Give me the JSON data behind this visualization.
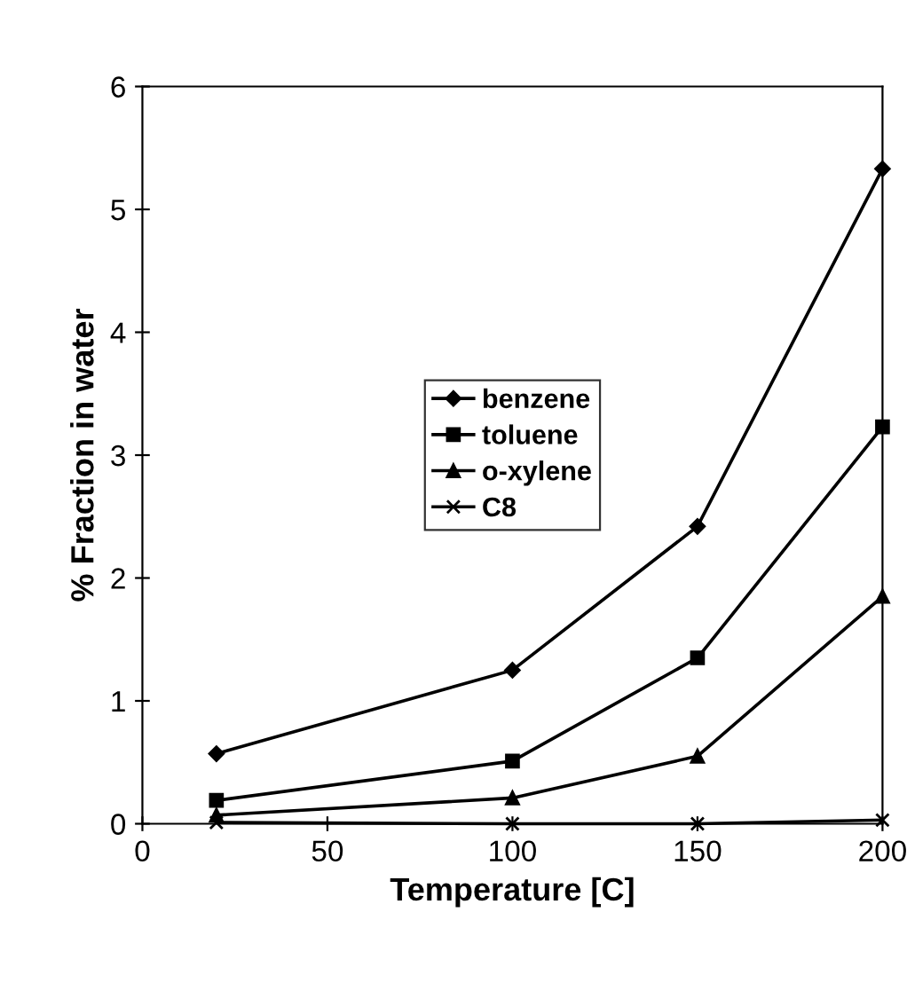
{
  "chart_data": {
    "type": "line",
    "xlabel": "Temperature [C]",
    "ylabel": "% Fraction in water",
    "x": [
      20,
      100,
      150,
      200
    ],
    "series": [
      {
        "name": "benzene",
        "color": "#000000",
        "marker": "diamond",
        "values": [
          0.57,
          1.25,
          2.42,
          5.33
        ]
      },
      {
        "name": "toluene",
        "color": "#000000",
        "marker": "square",
        "values": [
          0.19,
          0.51,
          1.35,
          3.23
        ]
      },
      {
        "name": "o-xylene",
        "color": "#000000",
        "marker": "triangle",
        "values": [
          0.07,
          0.21,
          0.55,
          1.85
        ]
      },
      {
        "name": "C8",
        "color": "#000000",
        "marker": "cross",
        "values": [
          0.01,
          0.0,
          0.0,
          0.03
        ]
      }
    ],
    "xlim": [
      0,
      200
    ],
    "xticks": [
      0,
      50,
      100,
      150,
      200
    ],
    "ylim": [
      0,
      6
    ],
    "yticks": [
      0,
      1,
      2,
      3,
      4,
      5,
      6
    ],
    "grid": false,
    "legend": "center",
    "line_style": "solid"
  }
}
